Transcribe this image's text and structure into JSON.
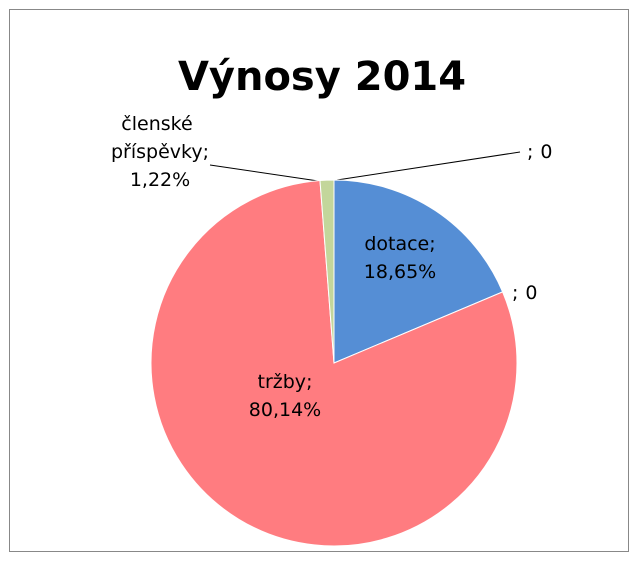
{
  "chart_data": {
    "type": "pie",
    "title": "Výnosy 2014",
    "categories": [
      "dotace",
      null,
      "tržby",
      "členské příspěvky",
      null
    ],
    "values": [
      18.65,
      0,
      80.14,
      1.22,
      0
    ],
    "value_labels": [
      "18,65%",
      "0",
      "80,14%",
      "1,22%",
      "0"
    ],
    "separator": ";",
    "colors": [
      "#558ED5",
      "#4F81BD",
      "#FF7C80",
      "#C3D69B",
      "#8064A2"
    ]
  }
}
